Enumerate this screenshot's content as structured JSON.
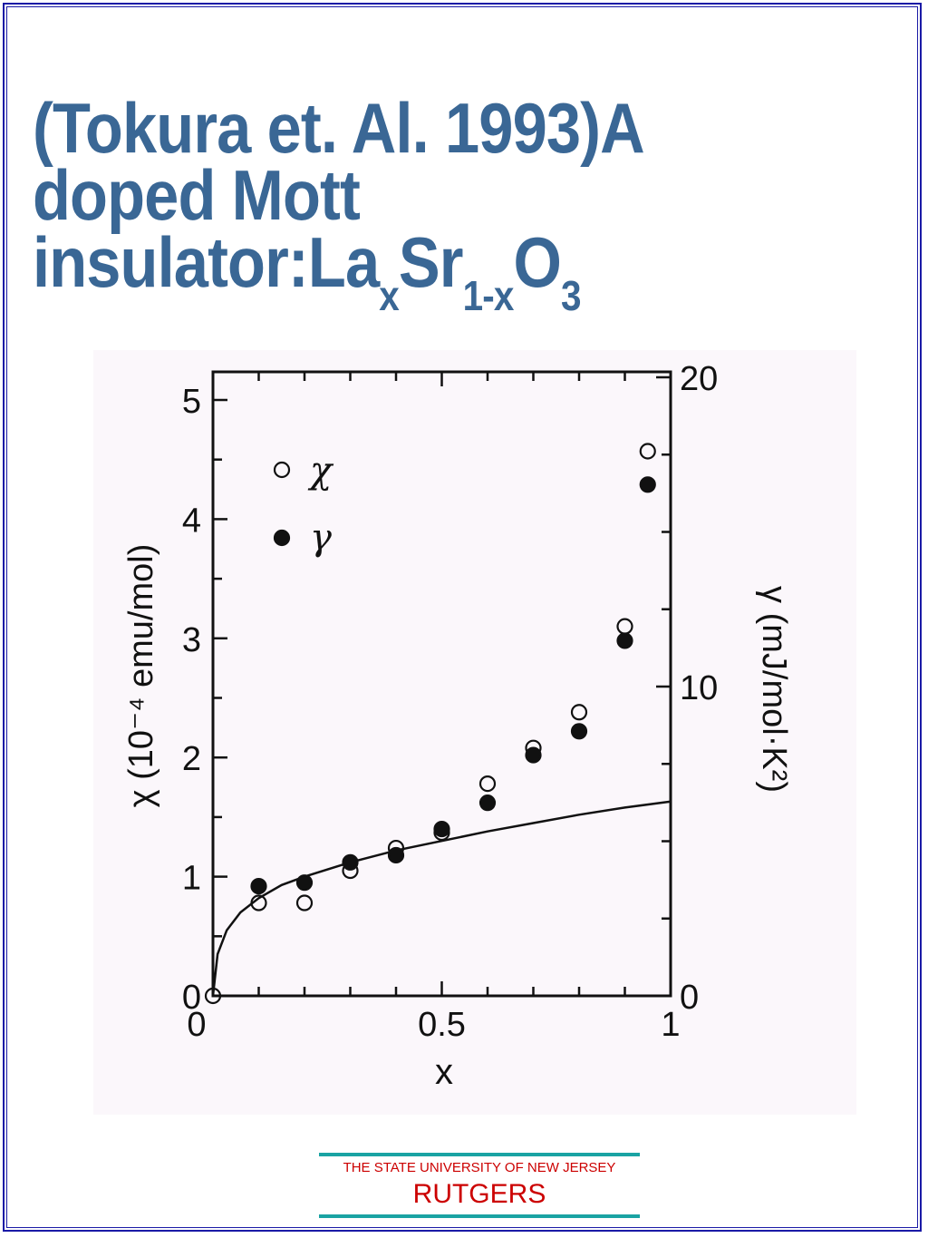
{
  "slide": {
    "title_line1": "(Tokura et. Al. 1993)A",
    "title_line2": "doped Mott",
    "title_line3_prefix": "insulator:La",
    "title_sub_x1": "x",
    "title_mid": "Sr",
    "title_sub_1x": "1-x",
    "title_end": "O",
    "title_sub_3": "3"
  },
  "footer": {
    "university": "THE STATE UNIVERSITY OF NEW JERSEY",
    "name": "RUTGERS"
  },
  "chart_data": {
    "type": "scatter",
    "xlabel": "x",
    "ylabel_left": "χ  (10⁻⁴ emu/mol)",
    "ylabel_right": "γ  (mJ/mol·K²)",
    "xlim": [
      0,
      1
    ],
    "ylim_left": [
      0,
      5
    ],
    "ylim_right": [
      0,
      20
    ],
    "x_ticks": [
      "0",
      "0.5",
      "1"
    ],
    "y_ticks_left": [
      "0",
      "1",
      "2",
      "3",
      "4",
      "5"
    ],
    "y_ticks_right": [
      "0",
      "10",
      "20"
    ],
    "legend": {
      "position": "top-left",
      "entries": [
        "χ",
        "γ"
      ]
    },
    "series": [
      {
        "name": "χ",
        "marker": "open-circle",
        "axis": "left",
        "x": [
          0.0,
          0.1,
          0.2,
          0.3,
          0.4,
          0.5,
          0.6,
          0.7,
          0.8,
          0.9,
          0.95
        ],
        "y": [
          0.0,
          0.78,
          0.78,
          1.05,
          1.24,
          1.37,
          1.78,
          2.08,
          2.38,
          3.1,
          4.57
        ]
      },
      {
        "name": "γ",
        "marker": "filled-circle",
        "axis": "left",
        "x": [
          0.1,
          0.2,
          0.3,
          0.4,
          0.5,
          0.6,
          0.7,
          0.8,
          0.9,
          0.95
        ],
        "y": [
          0.92,
          0.95,
          1.12,
          1.18,
          1.4,
          1.62,
          2.02,
          2.22,
          2.98,
          4.29
        ]
      }
    ],
    "curve": {
      "x": [
        0.0,
        0.01,
        0.03,
        0.06,
        0.1,
        0.15,
        0.2,
        0.3,
        0.4,
        0.5,
        0.6,
        0.7,
        0.8,
        0.9,
        1.0
      ],
      "y": [
        0.0,
        0.35,
        0.55,
        0.7,
        0.82,
        0.93,
        1.0,
        1.12,
        1.22,
        1.3,
        1.38,
        1.45,
        1.52,
        1.58,
        1.63
      ]
    }
  }
}
